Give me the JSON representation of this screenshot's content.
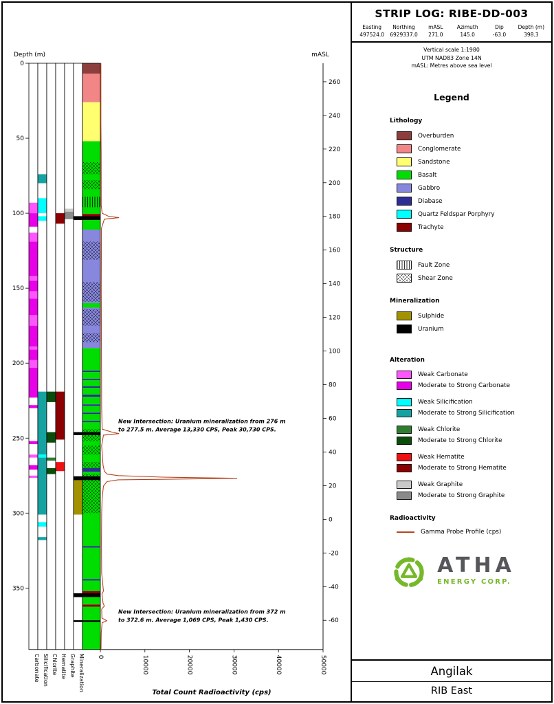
{
  "header": {
    "title": "STRIP LOG: RIBE-DD-003",
    "fields": [
      {
        "label": "Easting",
        "value": "497524.0"
      },
      {
        "label": "Northing",
        "value": "6929337.0"
      },
      {
        "label": "mASL",
        "value": "271.0"
      },
      {
        "label": "Azimuth",
        "value": "145.0"
      },
      {
        "label": "Dip",
        "value": "-63.0"
      },
      {
        "label": "Depth (m)",
        "value": "398.3"
      }
    ],
    "notes": [
      "Vertical scale 1:1980",
      "UTM NAD83 Zone 14N",
      "mASL: Metres above sea level"
    ]
  },
  "legend": {
    "title": "Legend",
    "lithology": {
      "title": "Lithology",
      "items": [
        {
          "label": "Overburden",
          "color": "#8e3d3d"
        },
        {
          "label": "Conglomerate",
          "color": "#f28585"
        },
        {
          "label": "Sandstone",
          "color": "#ffff70"
        },
        {
          "label": "Basalt",
          "color": "#00dd00"
        },
        {
          "label": "Gabbro",
          "color": "#8787dd"
        },
        {
          "label": "Diabase",
          "color": "#2d2d96"
        },
        {
          "label": "Quartz Feldspar Porphyry",
          "color": "#00ffff"
        },
        {
          "label": "Trachyte",
          "color": "#8b0000"
        }
      ]
    },
    "structure": {
      "title": "Structure",
      "items": [
        {
          "label": "Fault Zone",
          "pattern": "fault"
        },
        {
          "label": "Shear Zone",
          "pattern": "shear"
        }
      ]
    },
    "mineralization": {
      "title": "Mineralization",
      "items": [
        {
          "label": "Sulphide",
          "color": "#a39200"
        },
        {
          "label": "Uranium",
          "color": "#000000"
        }
      ]
    },
    "alteration": {
      "title": "Alteration",
      "groups": [
        {
          "name": "Carbonate",
          "weak_label": "Weak Carbonate",
          "strong_label": "Moderate to Strong Carbonate",
          "weak_color": "#ff55ff",
          "strong_color": "#e800e8"
        },
        {
          "name": "Silicification",
          "weak_label": "Weak Silicification",
          "strong_label": "Moderate to Strong Silicification",
          "weak_color": "#00ffff",
          "strong_color": "#17a2a2"
        },
        {
          "name": "Chlorite",
          "weak_label": "Weak Chlorite",
          "strong_label": "Moderate to Strong Chlorite",
          "weak_color": "#2e7d2e",
          "strong_color": "#0a4d0a"
        },
        {
          "name": "Hematite",
          "weak_label": "Weak Hematite",
          "strong_label": "Moderate to Strong Hematite",
          "weak_color": "#ee1111",
          "strong_color": "#8b0000"
        },
        {
          "name": "Graphite",
          "weak_label": "Weak Graphite",
          "strong_label": "Moderate to Strong Graphite",
          "weak_color": "#c9c9c9",
          "strong_color": "#8a8a8a"
        }
      ]
    },
    "radioactivity": {
      "title": "Radioactivity",
      "items": [
        {
          "label": "Gamma Probe Profile (cps)",
          "color": "#b5441f",
          "type": "line"
        }
      ]
    }
  },
  "logo": {
    "name": "ATHA",
    "subtitle": "ENERGY CORP.",
    "accent_color": "#76b82a",
    "text_color": "#56575b"
  },
  "footer": {
    "project": "Angilak",
    "area": "RIB East"
  },
  "chart_data": {
    "type": "strip-log",
    "depth_axis": {
      "label": "Depth (m)",
      "min": 0,
      "max": 391,
      "ticks": [
        0,
        50,
        100,
        150,
        200,
        250,
        300,
        350
      ]
    },
    "masl_axis": {
      "label": "mASL",
      "collar_masl": 271.0,
      "dip_deg": -63.0,
      "ticks": [
        260,
        240,
        220,
        200,
        180,
        160,
        140,
        120,
        100,
        80,
        60,
        40,
        20,
        0,
        -20,
        -40,
        -60
      ]
    },
    "radioactivity_axis": {
      "label": "Total Count Radioactivity (cps)",
      "min": 0,
      "max": 50000,
      "ticks": [
        0,
        10000,
        20000,
        30000,
        40000,
        50000
      ]
    },
    "alteration_columns": [
      {
        "name": "Carbonate",
        "intervals": [
          {
            "from": 93,
            "to": 100,
            "grade": "weak"
          },
          {
            "from": 100,
            "to": 109,
            "grade": "strong"
          },
          {
            "from": 113,
            "to": 119,
            "grade": "weak"
          },
          {
            "from": 119,
            "to": 142,
            "grade": "strong"
          },
          {
            "from": 142,
            "to": 145,
            "grade": "weak"
          },
          {
            "from": 145,
            "to": 152,
            "grade": "strong"
          },
          {
            "from": 152,
            "to": 157,
            "grade": "weak"
          },
          {
            "from": 157,
            "to": 168,
            "grade": "strong"
          },
          {
            "from": 168,
            "to": 175,
            "grade": "weak"
          },
          {
            "from": 175,
            "to": 189,
            "grade": "strong"
          },
          {
            "from": 189,
            "to": 191,
            "grade": "weak"
          },
          {
            "from": 191,
            "to": 198,
            "grade": "strong"
          },
          {
            "from": 198,
            "to": 203,
            "grade": "weak"
          },
          {
            "from": 203,
            "to": 223,
            "grade": "strong"
          },
          {
            "from": 228,
            "to": 230,
            "grade": "strong"
          },
          {
            "from": 252,
            "to": 254,
            "grade": "strong"
          },
          {
            "from": 261,
            "to": 263,
            "grade": "weak"
          },
          {
            "from": 268,
            "to": 271,
            "grade": "strong"
          },
          {
            "from": 275,
            "to": 276.5,
            "grade": "weak"
          }
        ]
      },
      {
        "name": "Silicification",
        "intervals": [
          {
            "from": 74,
            "to": 80,
            "grade": "strong"
          },
          {
            "from": 90,
            "to": 100,
            "grade": "weak"
          },
          {
            "from": 102,
            "to": 105,
            "grade": "weak"
          },
          {
            "from": 219,
            "to": 261,
            "grade": "strong"
          },
          {
            "from": 261,
            "to": 263,
            "grade": "weak"
          },
          {
            "from": 263,
            "to": 301,
            "grade": "strong"
          },
          {
            "from": 306,
            "to": 309,
            "grade": "weak"
          },
          {
            "from": 316,
            "to": 318,
            "grade": "strong"
          }
        ]
      },
      {
        "name": "Chlorite",
        "intervals": [
          {
            "from": 219,
            "to": 226,
            "grade": "strong"
          },
          {
            "from": 246,
            "to": 253,
            "grade": "strong"
          },
          {
            "from": 263,
            "to": 265,
            "grade": "weak"
          },
          {
            "from": 270,
            "to": 274,
            "grade": "strong"
          }
        ]
      },
      {
        "name": "Hematite",
        "intervals": [
          {
            "from": 100,
            "to": 107,
            "grade": "strong"
          },
          {
            "from": 219,
            "to": 251,
            "grade": "strong"
          },
          {
            "from": 266,
            "to": 272,
            "grade": "weak"
          }
        ]
      },
      {
        "name": "Graphite",
        "intervals": [
          {
            "from": 97,
            "to": 99,
            "grade": "weak"
          },
          {
            "from": 99,
            "to": 104,
            "grade": "strong"
          }
        ]
      },
      {
        "name": "Mineralization",
        "intervals": [
          {
            "from": 102,
            "to": 104.5,
            "fill": "Uranium"
          },
          {
            "from": 246,
            "to": 248,
            "fill": "Uranium"
          },
          {
            "from": 275.5,
            "to": 278,
            "fill": "Uranium"
          },
          {
            "from": 278,
            "to": 301,
            "fill": "Sulphide"
          },
          {
            "from": 353.5,
            "to": 356,
            "fill": "Uranium"
          },
          {
            "from": 371.5,
            "to": 372.6,
            "fill": "Uranium"
          }
        ]
      }
    ],
    "lithology_column": {
      "intervals": [
        {
          "from": 0,
          "to": 7,
          "unit": "Overburden"
        },
        {
          "from": 7,
          "to": 26,
          "unit": "Conglomerate"
        },
        {
          "from": 26,
          "to": 52,
          "unit": "Sandstone"
        },
        {
          "from": 52,
          "to": 100.5,
          "unit": "Basalt"
        },
        {
          "from": 100.5,
          "to": 102.5,
          "unit": "Trachyte"
        },
        {
          "from": 102.5,
          "to": 111,
          "unit": "Basalt"
        },
        {
          "from": 111,
          "to": 160,
          "unit": "Gabbro"
        },
        {
          "from": 160,
          "to": 163,
          "unit": "Basalt"
        },
        {
          "from": 163,
          "to": 190,
          "unit": "Gabbro"
        },
        {
          "from": 190,
          "to": 205,
          "unit": "Basalt"
        },
        {
          "from": 205,
          "to": 206,
          "unit": "Diabase"
        },
        {
          "from": 206,
          "to": 210.5,
          "unit": "Basalt"
        },
        {
          "from": 210.5,
          "to": 211.5,
          "unit": "Diabase"
        },
        {
          "from": 211.5,
          "to": 215.5,
          "unit": "Basalt"
        },
        {
          "from": 215.5,
          "to": 216.5,
          "unit": "Diabase"
        },
        {
          "from": 216.5,
          "to": 221,
          "unit": "Basalt"
        },
        {
          "from": 221,
          "to": 222.5,
          "unit": "Diabase"
        },
        {
          "from": 222.5,
          "to": 227.5,
          "unit": "Basalt"
        },
        {
          "from": 227.5,
          "to": 228.5,
          "unit": "Diabase"
        },
        {
          "from": 228.5,
          "to": 233,
          "unit": "Basalt"
        },
        {
          "from": 233,
          "to": 234,
          "unit": "Diabase"
        },
        {
          "from": 234,
          "to": 238.5,
          "unit": "Basalt"
        },
        {
          "from": 238.5,
          "to": 239.5,
          "unit": "Diabase"
        },
        {
          "from": 239.5,
          "to": 270,
          "unit": "Basalt"
        },
        {
          "from": 270,
          "to": 272.5,
          "unit": "Diabase"
        },
        {
          "from": 272.5,
          "to": 322,
          "unit": "Basalt"
        },
        {
          "from": 322,
          "to": 323,
          "unit": "Diabase"
        },
        {
          "from": 323,
          "to": 344,
          "unit": "Basalt"
        },
        {
          "from": 344,
          "to": 345,
          "unit": "Diabase"
        },
        {
          "from": 345,
          "to": 352,
          "unit": "Basalt"
        },
        {
          "from": 352,
          "to": 354.5,
          "unit": "Trachyte"
        },
        {
          "from": 354.5,
          "to": 361,
          "unit": "Basalt"
        },
        {
          "from": 361,
          "to": 362.5,
          "unit": "Trachyte"
        },
        {
          "from": 362.5,
          "to": 391,
          "unit": "Basalt"
        }
      ],
      "structures": [
        {
          "from": 66,
          "to": 74,
          "type": "shear"
        },
        {
          "from": 78,
          "to": 84,
          "type": "shear"
        },
        {
          "from": 89,
          "to": 96,
          "type": "fault"
        },
        {
          "from": 119,
          "to": 131,
          "type": "shear"
        },
        {
          "from": 146,
          "to": 159,
          "type": "shear"
        },
        {
          "from": 164,
          "to": 175,
          "type": "shear"
        },
        {
          "from": 180,
          "to": 186,
          "type": "shear"
        },
        {
          "from": 244,
          "to": 252,
          "type": "shear"
        },
        {
          "from": 255,
          "to": 261,
          "type": "shear"
        },
        {
          "from": 266,
          "to": 270,
          "type": "shear"
        },
        {
          "from": 274,
          "to": 300,
          "type": "shear"
        }
      ]
    },
    "gamma_profile": {
      "points_depth_cps": [
        [
          0,
          120
        ],
        [
          40,
          120
        ],
        [
          60,
          180
        ],
        [
          95,
          200
        ],
        [
          100,
          400
        ],
        [
          102,
          1800
        ],
        [
          103,
          4200
        ],
        [
          104,
          900
        ],
        [
          110,
          250
        ],
        [
          150,
          200
        ],
        [
          190,
          250
        ],
        [
          230,
          300
        ],
        [
          244,
          400
        ],
        [
          246,
          2600
        ],
        [
          247,
          4200
        ],
        [
          248,
          700
        ],
        [
          255,
          300
        ],
        [
          268,
          600
        ],
        [
          272,
          900
        ],
        [
          274,
          1500
        ],
        [
          275,
          4000
        ],
        [
          276,
          14000
        ],
        [
          276.8,
          30730
        ],
        [
          277.3,
          18000
        ],
        [
          277.8,
          4000
        ],
        [
          279,
          1500
        ],
        [
          282,
          700
        ],
        [
          290,
          400
        ],
        [
          300,
          300
        ],
        [
          320,
          250
        ],
        [
          340,
          300
        ],
        [
          352,
          700
        ],
        [
          354,
          350
        ],
        [
          360,
          600
        ],
        [
          362,
          900
        ],
        [
          364,
          300
        ],
        [
          370,
          350
        ],
        [
          371.8,
          1430
        ],
        [
          372.4,
          1100
        ],
        [
          373,
          400
        ],
        [
          380,
          200
        ],
        [
          391,
          150
        ]
      ]
    },
    "annotations": [
      {
        "depth": 240,
        "lines": [
          "New Intersection: Uranium mineralization from 276 m",
          "to 277.5 m. Average 13,330 CPS, Peak 30,730 CPS."
        ]
      },
      {
        "depth": 367,
        "lines": [
          "New Intersection: Uranium mineralization from 372 m",
          "to 372.6 m. Average 1,069 CPS, Peak 1,430 CPS."
        ]
      }
    ]
  }
}
